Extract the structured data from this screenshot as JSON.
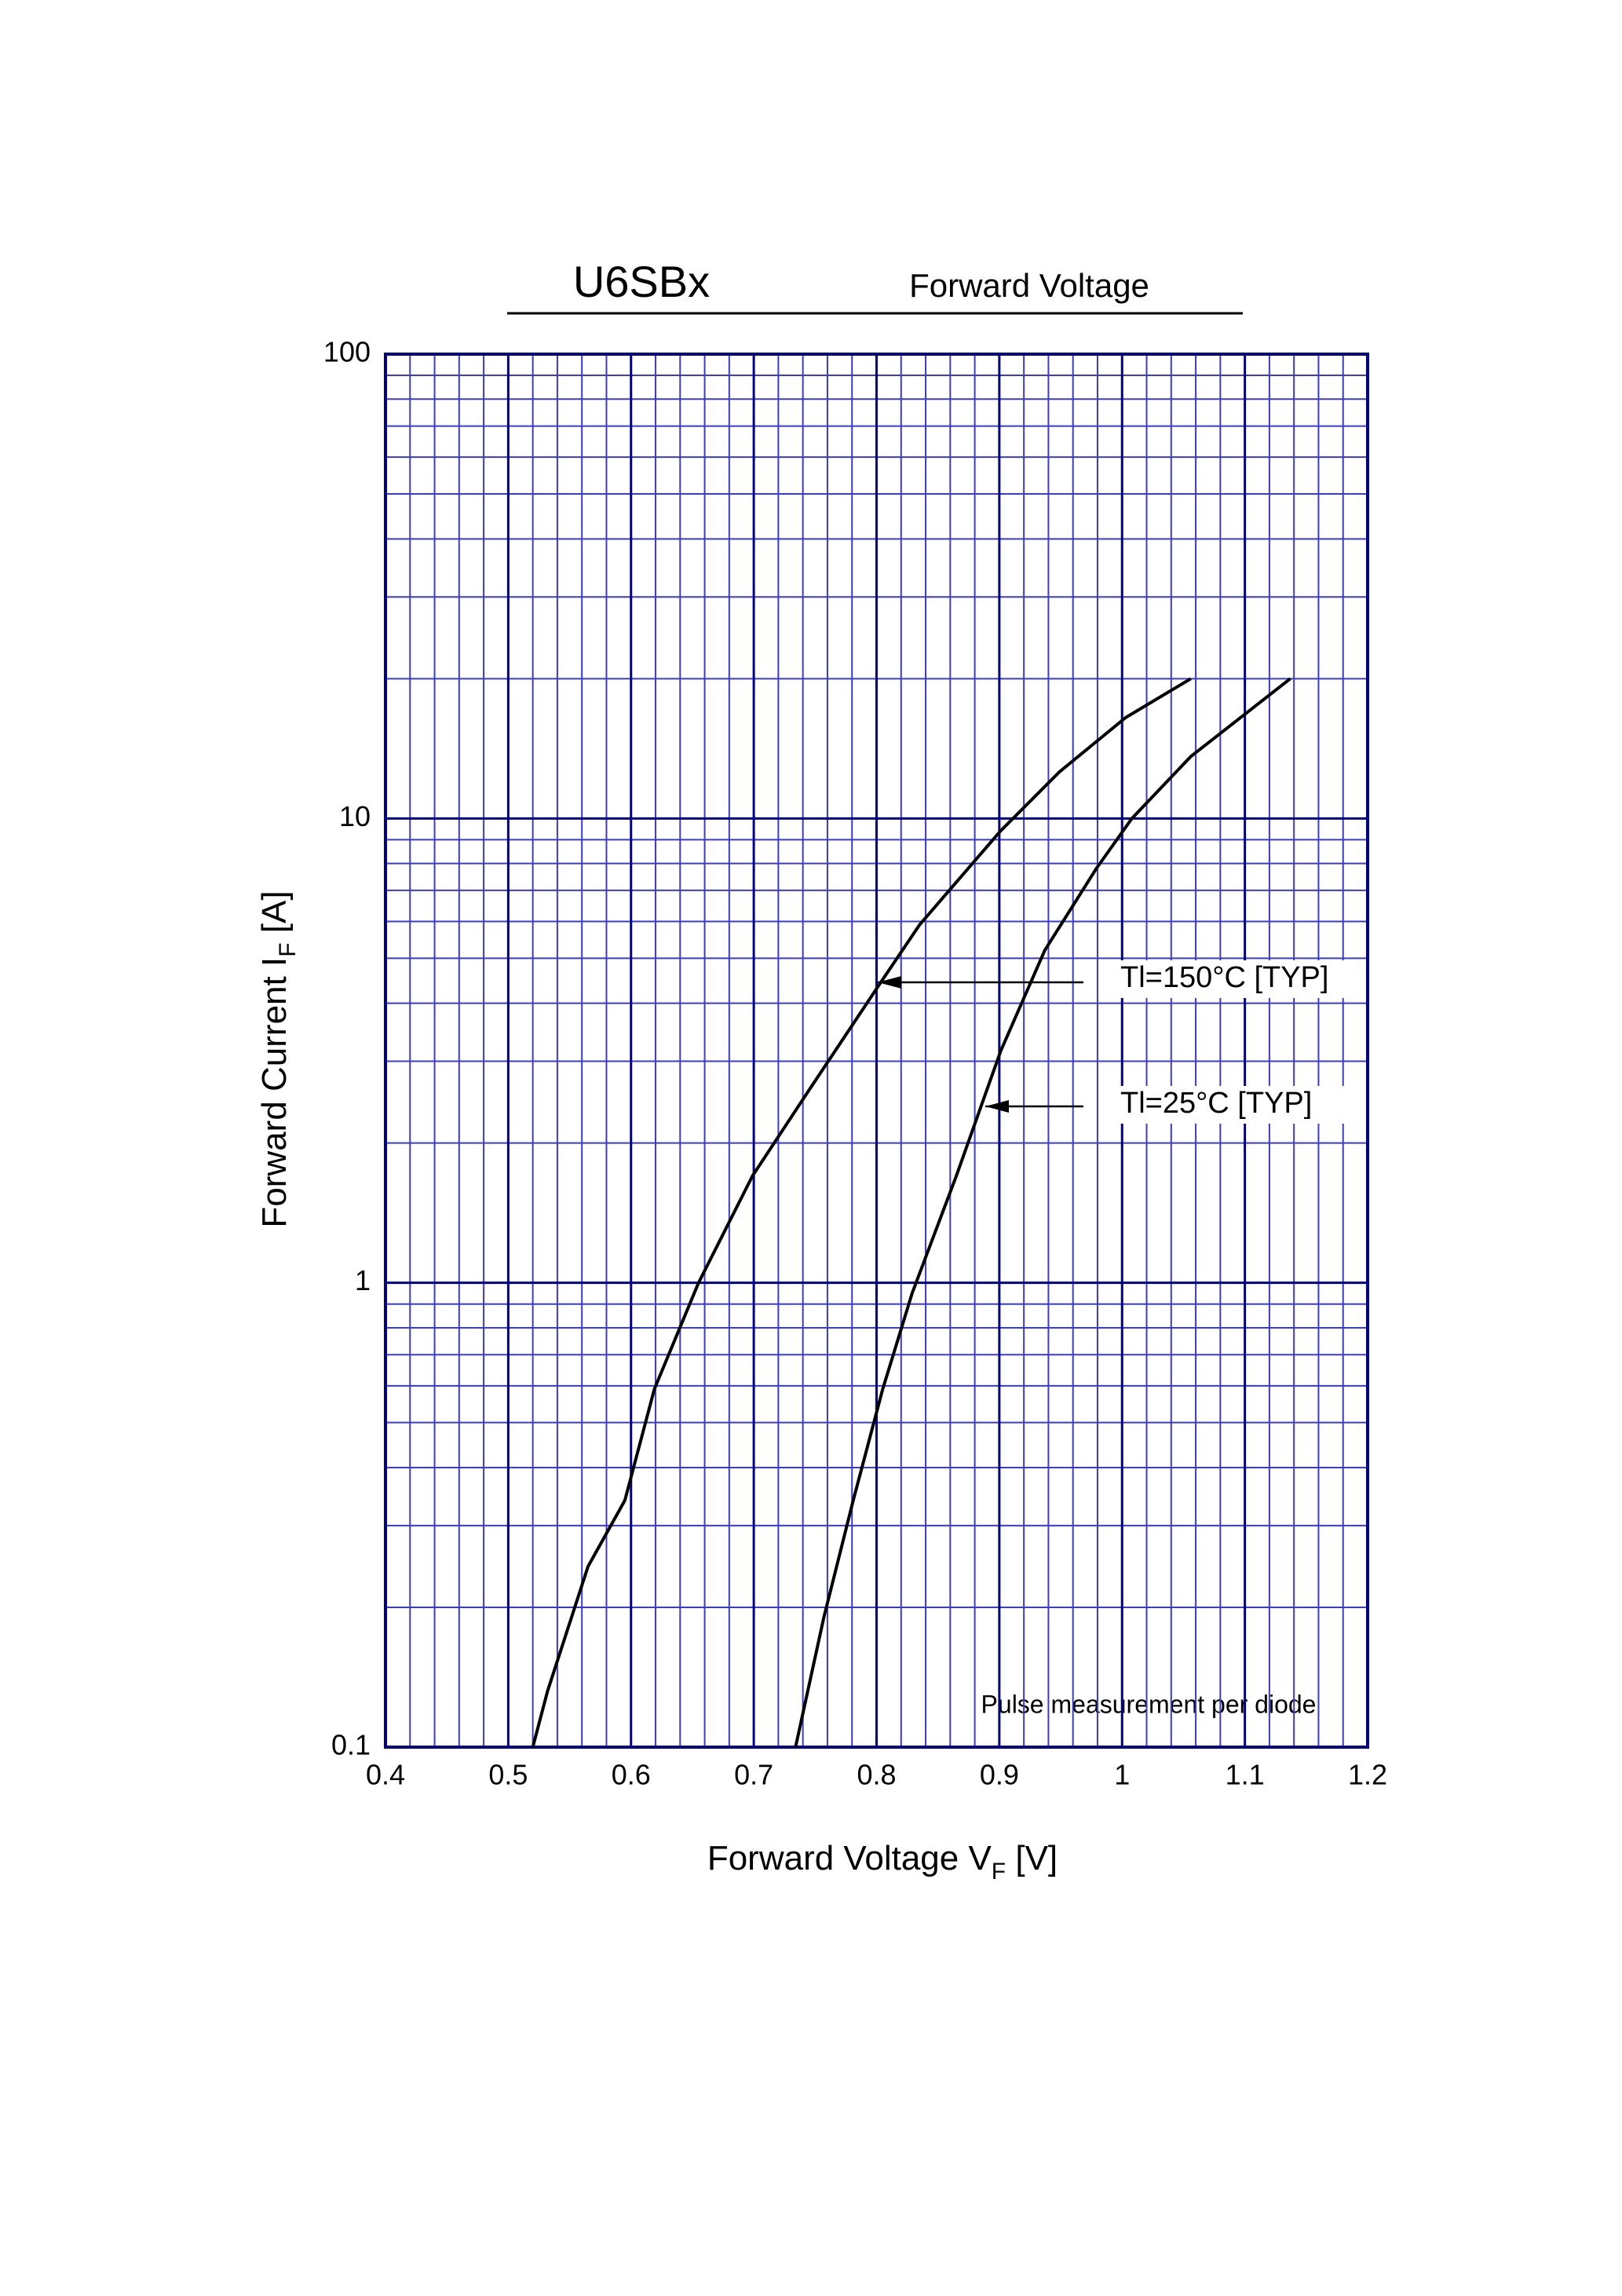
{
  "chart_data": {
    "type": "line",
    "title": "U6SBx",
    "subtitle": "Forward Voltage",
    "xlabel": [
      "Forward Voltage  V",
      "F",
      "  [V]"
    ],
    "ylabel": [
      "Forward Current  I",
      "F",
      "  [A]"
    ],
    "xlim": [
      0.4,
      1.2
    ],
    "xticks": [
      0.4,
      0.5,
      0.6,
      0.7,
      0.8,
      0.9,
      1,
      1.1,
      1.2
    ],
    "ylim": [
      0.1,
      100
    ],
    "yticks": [
      0.1,
      1,
      10,
      100
    ],
    "log_y": true,
    "grid": true,
    "grid_color": "#3a3ad8",
    "major_grid_color": "#00008b",
    "series": [
      {
        "name": "Tl=150°C [TYP]",
        "color": "#000000",
        "x": [
          0.52,
          0.532,
          0.565,
          0.595,
          0.619,
          0.655,
          0.699,
          0.745,
          0.805,
          0.835,
          0.901,
          0.949,
          1.003,
          1.056
        ],
        "values": [
          0.1,
          0.132,
          0.245,
          0.34,
          0.59,
          1.0,
          1.7,
          2.6,
          4.5,
          5.9,
          9.4,
          12.6,
          16.5,
          20
        ]
      },
      {
        "name": "Tl=25°C [TYP]",
        "color": "#000000",
        "x": [
          0.734,
          0.757,
          0.781,
          0.805,
          0.829,
          0.865,
          0.901,
          0.937,
          0.979,
          1.008,
          1.056,
          1.137
        ],
        "values": [
          0.1,
          0.19,
          0.34,
          0.59,
          0.95,
          1.7,
          3.15,
          5.2,
          7.8,
          10,
          13.6,
          20
        ]
      }
    ],
    "note": "Pulse measurement per diode"
  }
}
